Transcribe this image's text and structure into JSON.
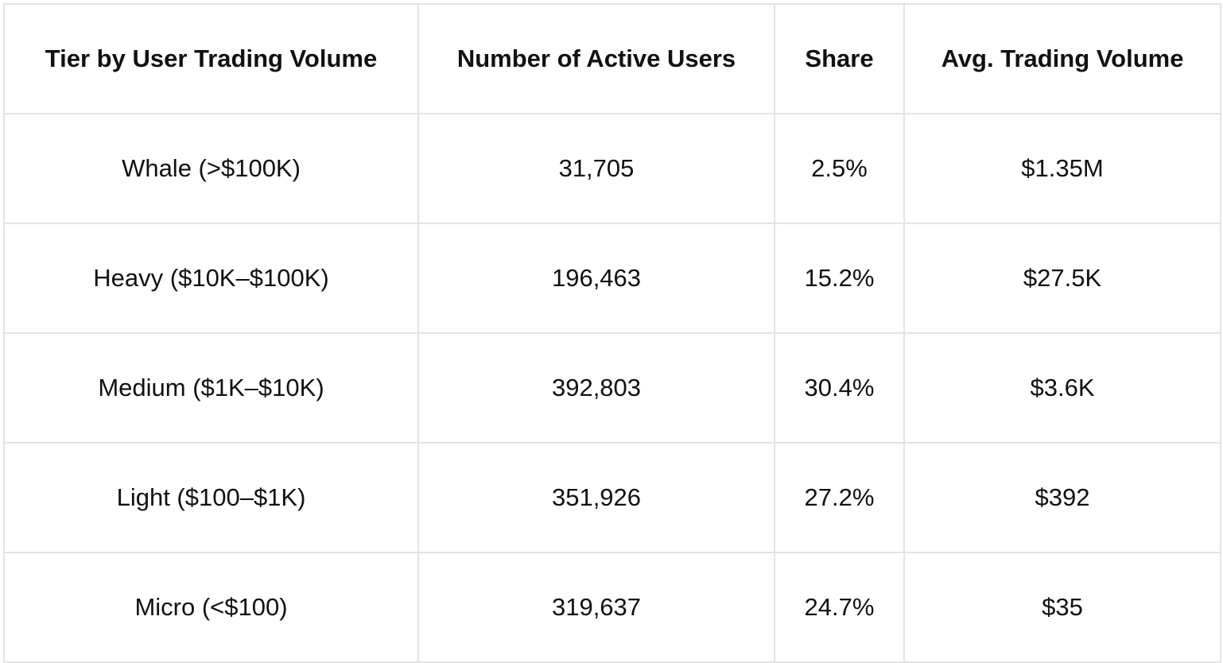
{
  "table": {
    "headers": [
      "Tier by User Trading Volume",
      "Number of Active Users",
      "Share",
      "Avg. Trading Volume"
    ],
    "rows": [
      [
        "Whale (>$100K)",
        "31,705",
        "2.5%",
        "$1.35M"
      ],
      [
        "Heavy ($10K–$100K)",
        "196,463",
        "15.2%",
        "$27.5K"
      ],
      [
        "Medium ($1K–$10K)",
        "392,803",
        "30.4%",
        "$3.6K"
      ],
      [
        "Light ($100–$1K)",
        "351,926",
        "27.2%",
        "$392"
      ],
      [
        "Micro (<$100)",
        "319,637",
        "24.7%",
        "$35"
      ]
    ]
  }
}
